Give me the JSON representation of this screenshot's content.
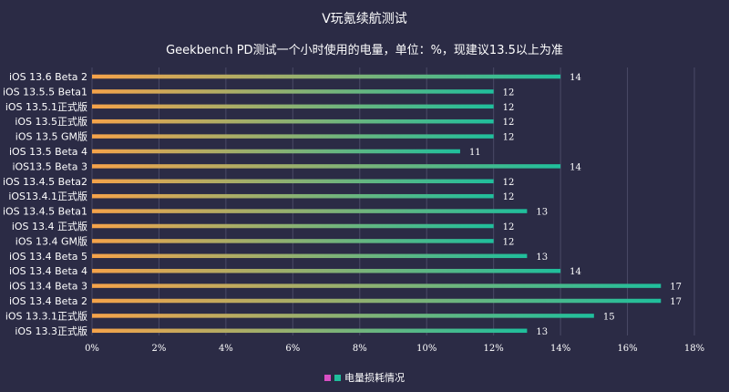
{
  "chart_data": {
    "type": "bar",
    "orientation": "horizontal",
    "title": "V玩氪续航测试",
    "subtitle": "Geekbench PD测试一个小时使用的电量，单位：%，现建议13.5以上为准",
    "categories": [
      "iOS 13.6 Beta 2",
      "iOS 13.5.5 Beta1",
      "iOS 13.5.1正式版",
      "iOS 13.5正式版",
      "iOS 13.5 GM版",
      "iOS 13.5 Beta 4",
      "iOS13.5 Beta 3",
      "iOS 13.4.5 Beta2",
      "iOS13.4.1正式版",
      "iOS 13.4.5 Beta1",
      "iOS 13.4 正式版",
      "iOS 13.4 GM版",
      "iOS 13.4 Beta 5",
      "iOS 13.4 Beta 4",
      "iOS 13.4 Beta 3",
      "iOS 13.4 Beta 2",
      "iOS 13.3.1正式版",
      "iOS 13.3正式版"
    ],
    "series": [
      {
        "name": "电量损耗情况",
        "values": [
          14,
          12,
          12,
          12,
          12,
          11,
          14,
          12,
          12,
          13,
          12,
          12,
          13,
          14,
          17,
          17,
          15,
          13
        ]
      }
    ],
    "xlim": [
      0,
      18
    ],
    "xticks": [
      "0%",
      "2%",
      "4%",
      "6%",
      "8%",
      "10%",
      "12%",
      "14%",
      "16%",
      "18%"
    ],
    "grid": true,
    "legend_position": "bottom",
    "colors": {
      "bar_start": "#f5a34a",
      "bar_end": "#1fbf9c",
      "legend_pink": "#d94fc4",
      "legend_teal": "#1fbf9c",
      "grid": "#4a4a66"
    }
  }
}
